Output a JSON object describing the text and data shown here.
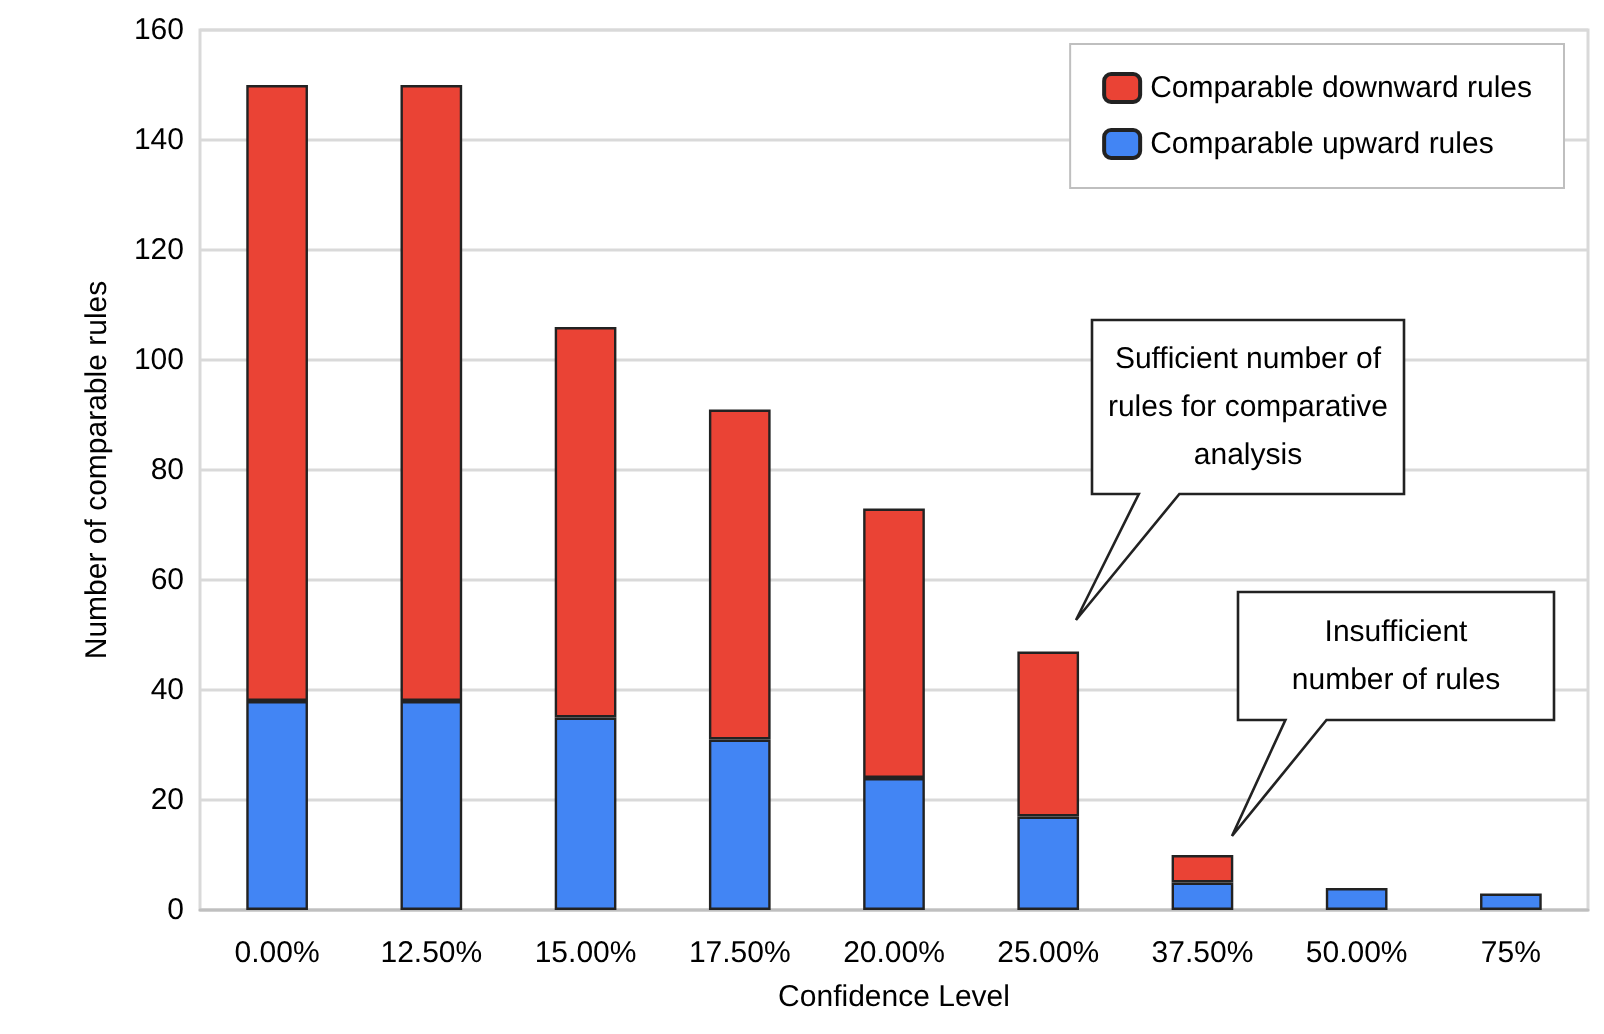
{
  "chart_data": {
    "type": "bar",
    "stacked": true,
    "xlabel": "Confidence Level",
    "ylabel": "Number of comparable rules",
    "categories": [
      "0.00%",
      "12.50%",
      "15.00%",
      "17.50%",
      "20.00%",
      "25.00%",
      "37.50%",
      "50.00%",
      "75%"
    ],
    "series": [
      {
        "name": "Comparable upward rules",
        "color": "#4285f4",
        "values": [
          38,
          38,
          35,
          31,
          24,
          17,
          5,
          4,
          3
        ]
      },
      {
        "name": "Comparable downward rules",
        "color": "#ea4335",
        "values": [
          112,
          112,
          71,
          60,
          49,
          30,
          5,
          null,
          null
        ]
      }
    ],
    "ylim": [
      0,
      160
    ],
    "yticks": [
      0,
      20,
      40,
      60,
      80,
      100,
      120,
      140,
      160
    ],
    "grid": "y",
    "legend": "top right",
    "annotations": [
      "Sufficient number of\nrules for comparative\nanalysis",
      "Insufficient\nnumber of rules"
    ]
  }
}
